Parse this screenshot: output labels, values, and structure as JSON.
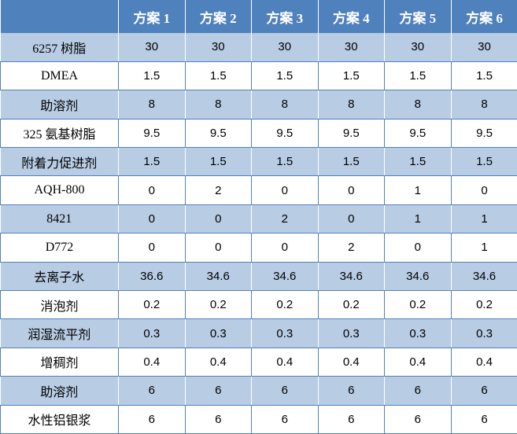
{
  "colors": {
    "header_bg": "#4f81bd",
    "header_text": "#ffffff",
    "band": "#b8cce4",
    "plain": "#ffffff"
  },
  "header": [
    "",
    "方案 1",
    "方案 2",
    "方案 3",
    "方案 4",
    "方案 5",
    "方案 6"
  ],
  "rows": [
    {
      "label": "6257 树脂",
      "values": [
        "30",
        "30",
        "30",
        "30",
        "30",
        "30"
      ]
    },
    {
      "label": "DMEA",
      "values": [
        "1.5",
        "1.5",
        "1.5",
        "1.5",
        "1.5",
        "1.5"
      ]
    },
    {
      "label": "助溶剂",
      "values": [
        "8",
        "8",
        "8",
        "8",
        "8",
        "8"
      ]
    },
    {
      "label": "325 氨基树脂",
      "values": [
        "9.5",
        "9.5",
        "9.5",
        "9.5",
        "9.5",
        "9.5"
      ]
    },
    {
      "label": "附着力促进剂",
      "values": [
        "1.5",
        "1.5",
        "1.5",
        "1.5",
        "1.5",
        "1.5"
      ]
    },
    {
      "label": "AQH-800",
      "values": [
        "0",
        "2",
        "0",
        "0",
        "1",
        "0"
      ]
    },
    {
      "label": "8421",
      "values": [
        "0",
        "0",
        "2",
        "0",
        "1",
        "1"
      ]
    },
    {
      "label": "D772",
      "values": [
        "0",
        "0",
        "0",
        "2",
        "0",
        "1"
      ]
    },
    {
      "label": "去离子水",
      "values": [
        "36.6",
        "34.6",
        "34.6",
        "34.6",
        "34.6",
        "34.6"
      ]
    },
    {
      "label": "消泡剂",
      "values": [
        "0.2",
        "0.2",
        "0.2",
        "0.2",
        "0.2",
        "0.2"
      ]
    },
    {
      "label": "润湿流平剂",
      "values": [
        "0.3",
        "0.3",
        "0.3",
        "0.3",
        "0.3",
        "0.3"
      ]
    },
    {
      "label": "增稠剂",
      "values": [
        "0.4",
        "0.4",
        "0.4",
        "0.4",
        "0.4",
        "0.4"
      ]
    },
    {
      "label": "助溶剂",
      "values": [
        "6",
        "6",
        "6",
        "6",
        "6",
        "6"
      ]
    },
    {
      "label": "水性铝银浆",
      "values": [
        "6",
        "6",
        "6",
        "6",
        "6",
        "6"
      ]
    }
  ]
}
